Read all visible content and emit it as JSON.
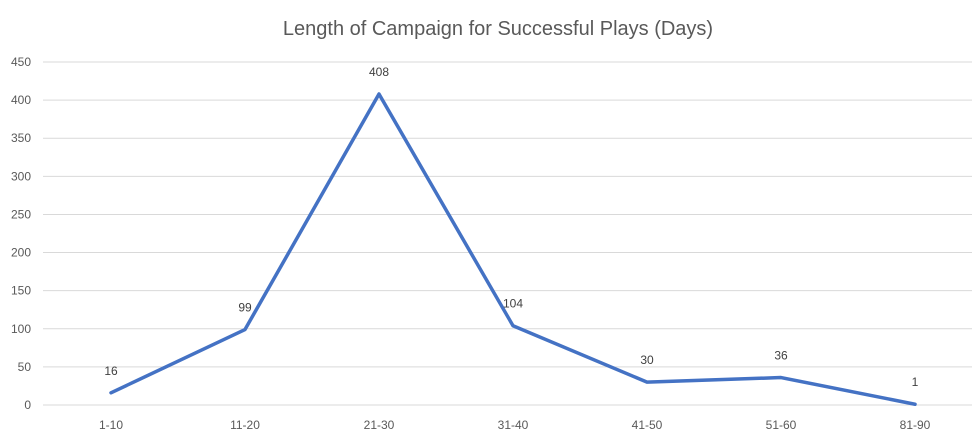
{
  "chart_data": {
    "type": "line",
    "title": "Length of Campaign for Successful Plays (Days)",
    "xlabel": "",
    "ylabel": "",
    "categories": [
      "1-10",
      "11-20",
      "21-30",
      "31-40",
      "41-50",
      "51-60",
      "81-90"
    ],
    "series": [
      {
        "values": [
          16,
          99,
          408,
          104,
          30,
          36,
          1
        ]
      }
    ],
    "ylim": [
      0,
      450
    ],
    "yticks": [
      0,
      50,
      100,
      150,
      200,
      250,
      300,
      350,
      400,
      450
    ],
    "grid": true,
    "data_labels": true,
    "line_color": "#4472C4"
  }
}
